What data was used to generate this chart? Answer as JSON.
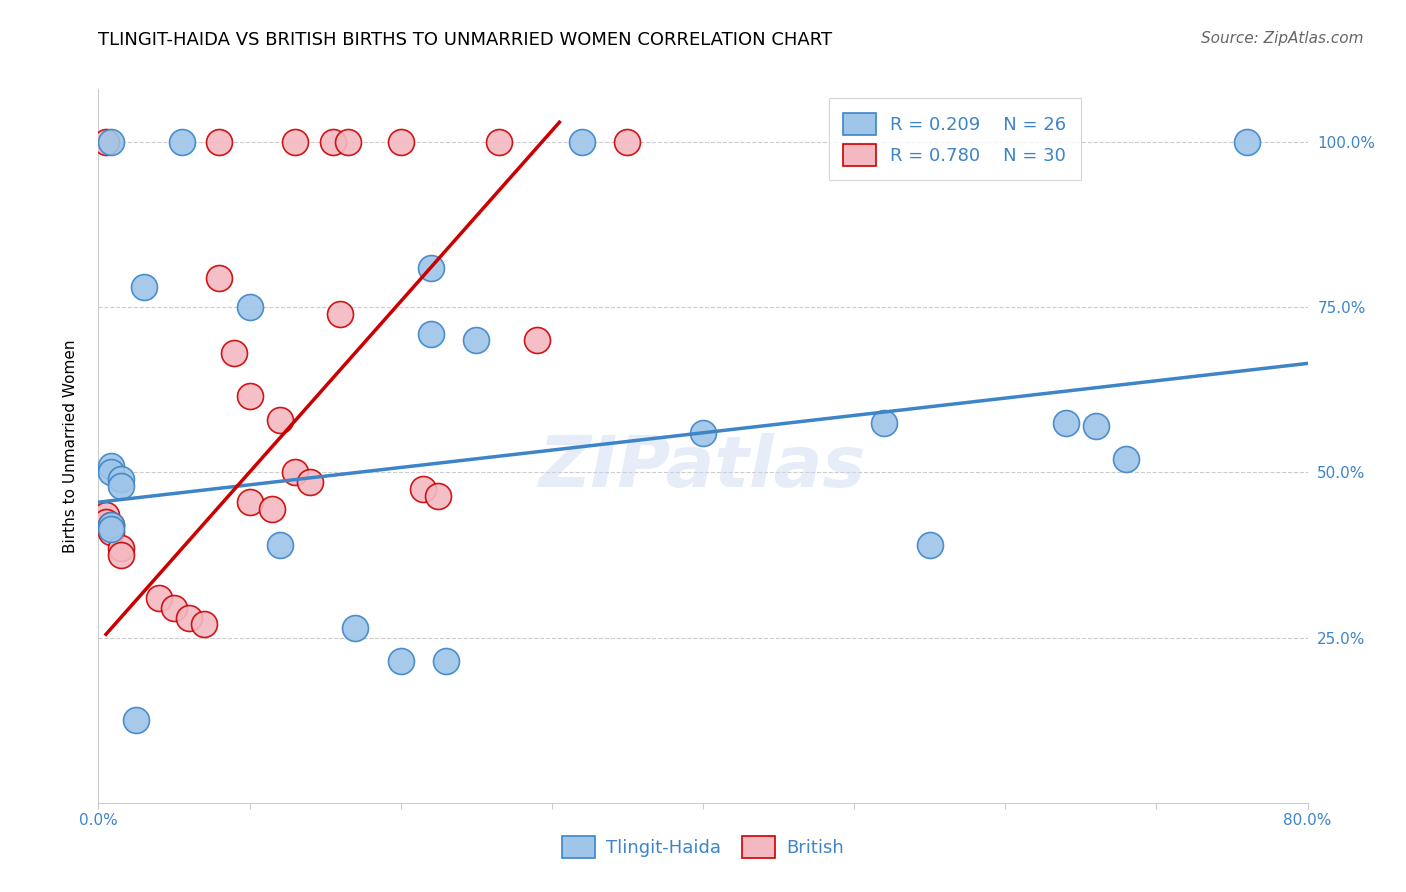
{
  "title": "TLINGIT-HAIDA VS BRITISH BIRTHS TO UNMARRIED WOMEN CORRELATION CHART",
  "source": "Source: ZipAtlas.com",
  "ylabel": "Births to Unmarried Women",
  "watermark": "ZIPatlas",
  "legend_blue_r": "R = 0.209",
  "legend_blue_n": "N = 26",
  "legend_pink_r": "R = 0.780",
  "legend_pink_n": "N = 30",
  "legend_label_blue": "Tlingit-Haida",
  "legend_label_pink": "British",
  "xlim": [
    0.0,
    0.8
  ],
  "ylim": [
    0.0,
    1.08
  ],
  "yticks": [
    0.25,
    0.5,
    0.75,
    1.0
  ],
  "ytick_labels": [
    "25.0%",
    "50.0%",
    "75.0%",
    "100.0%"
  ],
  "blue_color": "#9fc5e8",
  "pink_color": "#f4b8c1",
  "line_blue_color": "#3d85c8",
  "line_pink_color": "#cc0000",
  "blue_scatter": [
    [
      0.008,
      1.0
    ],
    [
      0.055,
      1.0
    ],
    [
      0.32,
      1.0
    ],
    [
      0.76,
      1.0
    ],
    [
      0.22,
      0.81
    ],
    [
      0.03,
      0.78
    ],
    [
      0.1,
      0.75
    ],
    [
      0.22,
      0.71
    ],
    [
      0.25,
      0.7
    ],
    [
      0.008,
      0.51
    ],
    [
      0.008,
      0.5
    ],
    [
      0.015,
      0.49
    ],
    [
      0.015,
      0.48
    ],
    [
      0.008,
      0.42
    ],
    [
      0.008,
      0.415
    ],
    [
      0.12,
      0.39
    ],
    [
      0.4,
      0.56
    ],
    [
      0.52,
      0.575
    ],
    [
      0.17,
      0.265
    ],
    [
      0.2,
      0.215
    ],
    [
      0.23,
      0.215
    ],
    [
      0.025,
      0.125
    ],
    [
      0.64,
      0.575
    ],
    [
      0.66,
      0.57
    ],
    [
      0.55,
      0.39
    ],
    [
      0.68,
      0.52
    ]
  ],
  "pink_scatter": [
    [
      0.005,
      1.0
    ],
    [
      0.08,
      1.0
    ],
    [
      0.13,
      1.0
    ],
    [
      0.155,
      1.0
    ],
    [
      0.165,
      1.0
    ],
    [
      0.2,
      1.0
    ],
    [
      0.265,
      1.0
    ],
    [
      0.35,
      1.0
    ],
    [
      0.08,
      0.795
    ],
    [
      0.16,
      0.74
    ],
    [
      0.09,
      0.68
    ],
    [
      0.1,
      0.615
    ],
    [
      0.12,
      0.58
    ],
    [
      0.13,
      0.5
    ],
    [
      0.14,
      0.485
    ],
    [
      0.005,
      0.435
    ],
    [
      0.005,
      0.425
    ],
    [
      0.008,
      0.42
    ],
    [
      0.008,
      0.41
    ],
    [
      0.015,
      0.385
    ],
    [
      0.015,
      0.375
    ],
    [
      0.04,
      0.31
    ],
    [
      0.05,
      0.295
    ],
    [
      0.06,
      0.28
    ],
    [
      0.07,
      0.27
    ],
    [
      0.1,
      0.455
    ],
    [
      0.115,
      0.445
    ],
    [
      0.215,
      0.475
    ],
    [
      0.225,
      0.465
    ],
    [
      0.29,
      0.7
    ]
  ],
  "blue_line_x": [
    0.0,
    0.8
  ],
  "blue_line_y": [
    0.455,
    0.665
  ],
  "pink_line_x": [
    0.005,
    0.305
  ],
  "pink_line_y": [
    0.255,
    1.03
  ],
  "title_fontsize": 13,
  "axis_label_fontsize": 11,
  "tick_fontsize": 11,
  "legend_fontsize": 13,
  "source_fontsize": 11
}
